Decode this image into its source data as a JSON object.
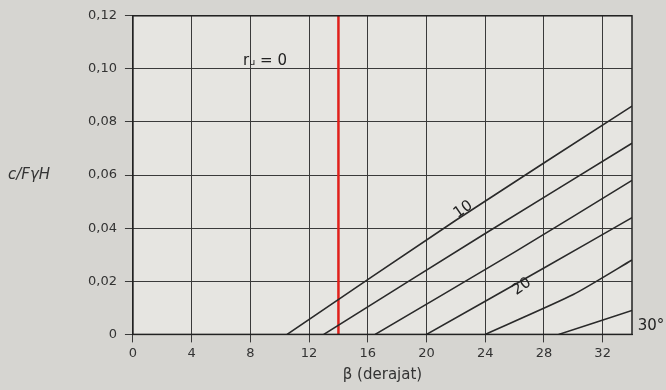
{
  "chart_data": {
    "type": "line",
    "x_label": "β (derajat)",
    "y_label": "c/FγH",
    "xlim": [
      0,
      34
    ],
    "xticks": [
      0,
      4,
      8,
      12,
      16,
      20,
      24,
      28,
      32
    ],
    "ylim": [
      0,
      0.12
    ],
    "yticks": [
      0,
      {
        "value": 0.02,
        "label": "0,02"
      },
      {
        "value": 0.04,
        "label": "0,04"
      },
      {
        "value": 0.06,
        "label": "0,06"
      },
      {
        "value": 0.08,
        "label": "0,08"
      },
      {
        "value": 0.1,
        "label": "0,10"
      },
      {
        "value": 0.12,
        "label": "0,12"
      }
    ],
    "grid": true,
    "series": [
      {
        "color": "#2a2a2a",
        "x": [
          10.5,
          22,
          34
        ],
        "values": [
          0,
          0.043,
          0.086
        ]
      },
      {
        "color": "#2a2a2a",
        "x": [
          13,
          24,
          34
        ],
        "values": [
          0,
          0.038,
          0.072
        ]
      },
      {
        "color": "#2a2a2a",
        "x": [
          16.5,
          26,
          34
        ],
        "values": [
          0,
          0.031,
          0.058
        ]
      },
      {
        "color": "#2a2a2a",
        "x": [
          20,
          28,
          34
        ],
        "values": [
          0,
          0.025,
          0.044
        ]
      },
      {
        "color": "#2a2a2a",
        "x": [
          24,
          30,
          34
        ],
        "values": [
          0,
          0.015,
          0.028
        ]
      },
      {
        "color": "#2a2a2a",
        "x": [
          29,
          34
        ],
        "values": [
          0,
          0.009
        ]
      },
      {
        "color": "#e0201b",
        "x": [
          14,
          14
        ],
        "values": [
          0,
          0.12
        ]
      }
    ],
    "annotations": [
      {
        "text": "rᵤ = 0",
        "x": 9,
        "y": 0.103
      },
      {
        "text": "10",
        "x": 22.5,
        "y": 0.047
      },
      {
        "text": "20",
        "x": 26.5,
        "y": 0.018
      },
      {
        "text": "30°",
        "x": 35.3,
        "y": 0.003
      }
    ]
  }
}
